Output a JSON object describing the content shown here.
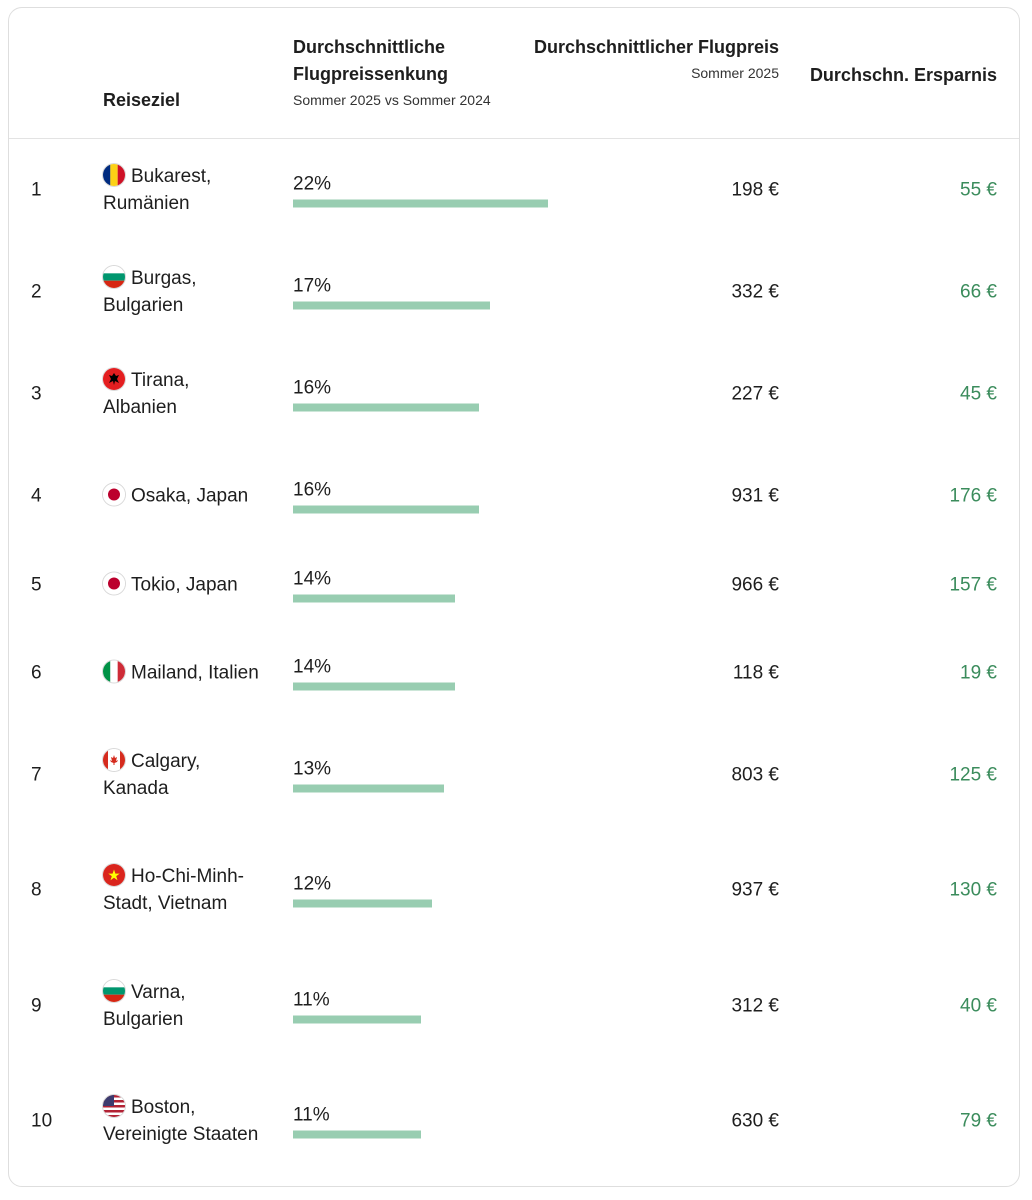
{
  "header": {
    "destination": "Reiseziel",
    "drop_title": "Durchschnittliche Flugpreissenkung",
    "drop_sub": "Sommer 2025 vs Sommer 2024",
    "fare_title": "Durchschnittlicher Flugpreis",
    "fare_sub": "Sommer 2025",
    "save_title": "Durchschn. Ersparnis"
  },
  "colors": {
    "bar": "#98cdb1",
    "savings": "#3b8c5c"
  },
  "rows": [
    {
      "rank": "1",
      "flag": "romania-flag-icon",
      "city": "Bukarest, Rumänien",
      "drop_label": "22%",
      "drop": 22,
      "fare": "198 €",
      "savings": "55 €"
    },
    {
      "rank": "2",
      "flag": "bulgaria-flag-icon",
      "city": "Burgas, Bulgarien",
      "drop_label": "17%",
      "drop": 17,
      "fare": "332 €",
      "savings": "66 €"
    },
    {
      "rank": "3",
      "flag": "albania-flag-icon",
      "city": "Tirana, Albanien",
      "drop_label": "16%",
      "drop": 16,
      "fare": "227 €",
      "savings": "45 €"
    },
    {
      "rank": "4",
      "flag": "japan-flag-icon",
      "city": "Osaka, Japan",
      "drop_label": "16%",
      "drop": 16,
      "fare": "931 €",
      "savings": "176 €"
    },
    {
      "rank": "5",
      "flag": "japan-flag-icon",
      "city": "Tokio, Japan",
      "drop_label": "14%",
      "drop": 14,
      "fare": "966 €",
      "savings": "157 €"
    },
    {
      "rank": "6",
      "flag": "italy-flag-icon",
      "city": "Mailand, Italien",
      "drop_label": "14%",
      "drop": 14,
      "fare": "118 €",
      "savings": "19 €"
    },
    {
      "rank": "7",
      "flag": "canada-flag-icon",
      "city": "Calgary, Kanada",
      "drop_label": "13%",
      "drop": 13,
      "fare": "803 €",
      "savings": "125 €"
    },
    {
      "rank": "8",
      "flag": "vietnam-flag-icon",
      "city": "Ho-Chi-Minh-Stadt, Vietnam",
      "drop_label": "12%",
      "drop": 12,
      "fare": "937 €",
      "savings": "130 €"
    },
    {
      "rank": "9",
      "flag": "bulgaria-flag-icon",
      "city": "Varna, Bulgarien",
      "drop_label": "11%",
      "drop": 11,
      "fare": "312 €",
      "savings": "40 €"
    },
    {
      "rank": "10",
      "flag": "usa-flag-icon",
      "city": "Boston, Vereinigte Staaten",
      "drop_label": "11%",
      "drop": 11,
      "fare": "630 €",
      "savings": "79 €"
    }
  ]
}
